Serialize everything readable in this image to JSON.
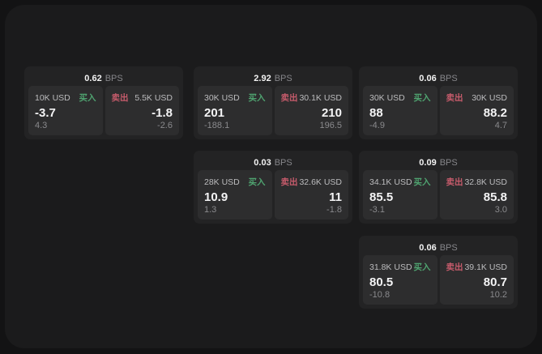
{
  "labels": {
    "buy": "买入",
    "sell": "卖出",
    "bps_unit": "BPS"
  },
  "colors": {
    "background": "#131314",
    "panel_background": "#1b1b1c",
    "card_background": "#232324",
    "tile_background": "#2d2d2e",
    "buy_green": "#4fa370",
    "sell_red": "#c65b6b"
  },
  "cards": [
    {
      "bps": "0.62",
      "buy": {
        "amount": "10K USD",
        "value": "-3.7",
        "sub": "4.3"
      },
      "sell": {
        "amount": "5.5K USD",
        "value": "-1.8",
        "sub": "-2.6"
      }
    },
    {
      "bps": "2.92",
      "buy": {
        "amount": "30K USD",
        "value": "201",
        "sub": "-188.1"
      },
      "sell": {
        "amount": "30.1K USD",
        "value": "210",
        "sub": "196.5"
      }
    },
    {
      "bps": "0.06",
      "buy": {
        "amount": "30K USD",
        "value": "88",
        "sub": "-4.9"
      },
      "sell": {
        "amount": "30K USD",
        "value": "88.2",
        "sub": "4.7"
      }
    },
    {
      "bps": "0.03",
      "buy": {
        "amount": "28K USD",
        "value": "10.9",
        "sub": "1.3"
      },
      "sell": {
        "amount": "32.6K USD",
        "value": "11",
        "sub": "-1.8"
      }
    },
    {
      "bps": "0.09",
      "buy": {
        "amount": "34.1K USD",
        "value": "85.5",
        "sub": "-3.1"
      },
      "sell": {
        "amount": "32.8K USD",
        "value": "85.8",
        "sub": "3.0"
      }
    },
    {
      "bps": "0.06",
      "buy": {
        "amount": "31.8K USD",
        "value": "80.5",
        "sub": "-10.8"
      },
      "sell": {
        "amount": "39.1K USD",
        "value": "80.7",
        "sub": "10.2"
      }
    }
  ]
}
